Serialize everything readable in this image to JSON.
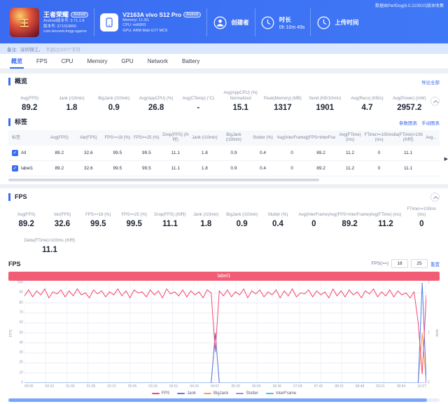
{
  "header": {
    "collect_info": "数据由PerfDog(6.0.210910)版本收集",
    "game": {
      "title": "王者荣耀",
      "badge": "Android",
      "icon_glyph": "王",
      "version_line1": "Android版本号: 3.71.1.8",
      "version_line2": "版本号: 371010800",
      "package": "com.tencent.tmgp.sgame"
    },
    "device": {
      "name": "V2163A vivo S12 Pro",
      "badge": "Android",
      "memory": "Memory: 11.3G",
      "cpu": "CPU: mt6893",
      "gpu": "GPU: ARM Mali-G77 MC9"
    },
    "creator_label": "创建者",
    "duration_label": "时长",
    "duration_value": "0h 10m 49s",
    "upload_label": "上传时间"
  },
  "note": {
    "label": "备注:",
    "text": "深圳锦江，",
    "placeholder": "不超过200个字符"
  },
  "tabs": [
    {
      "label": "概览",
      "active": true
    },
    {
      "label": "FPS",
      "active": false
    },
    {
      "label": "CPU",
      "active": false
    },
    {
      "label": "Memory",
      "active": false
    },
    {
      "label": "GPU",
      "active": false
    },
    {
      "label": "Network",
      "active": false
    },
    {
      "label": "Battery",
      "active": false
    }
  ],
  "overview": {
    "title": "概览",
    "export_label": "导出全部",
    "stats": [
      {
        "label": "Avg(FPS)",
        "value": "89.2"
      },
      {
        "label": "Jank (/10min)",
        "value": "1.8"
      },
      {
        "label": "BigJank (/10min)",
        "value": "0.9"
      },
      {
        "label": "Avg(AppCPU) (%)",
        "value": "26.8"
      },
      {
        "label": "Avg(CTemp) (°C)",
        "value": "-"
      },
      {
        "label": "Avg(AppCPU) (%) Normalized",
        "value": "15.1"
      },
      {
        "label": "Peak(Memory) (MB)",
        "value": "1317"
      },
      {
        "label": "Send (KB/10min)",
        "value": "1901"
      },
      {
        "label": "Avg(Recv) (KB/s)",
        "value": "4.7"
      },
      {
        "label": "Avg(Power) (mW)",
        "value": "2957.2"
      }
    ]
  },
  "labels_section": {
    "title": "标签",
    "links": [
      "参数图表",
      "手动图表"
    ],
    "columns": [
      "标签",
      "Avg(FPS)",
      "Var(FPS)",
      "FPS>=18 (%)",
      "FPS>=25 (%)",
      "Drop(FPS) (/h时)",
      "Jank (/10min)",
      "BigJank (/10min)",
      "Stutter (%)",
      "Avg(InterFrame)",
      "Avg(FPS+InterFrame)",
      "Avg(FTime) (ms)",
      "FTime>=100ms (ms)",
      "Delta(FTime)>100ms (/h时)",
      "Avg..."
    ],
    "rows": [
      {
        "name": "All",
        "checked": true,
        "values": [
          "89.2",
          "32.6",
          "99.5",
          "99.5",
          "11.1",
          "1.8",
          "0.9",
          "0.4",
          "0",
          "89.2",
          "11.2",
          "0",
          "11.1"
        ]
      },
      {
        "name": "label1",
        "checked": true,
        "values": [
          "89.2",
          "32.6",
          "99.5",
          "99.5",
          "11.1",
          "1.8",
          "0.9",
          "0.4",
          "0",
          "89.2",
          "11.2",
          "0",
          "11.1"
        ]
      }
    ]
  },
  "fps_section": {
    "title": "FPS",
    "stats_row1": [
      {
        "label": "Avg(FPS)",
        "value": "89.2"
      },
      {
        "label": "Var(FPS)",
        "value": "32.6"
      },
      {
        "label": "FPS>=18 (%)",
        "value": "99.5"
      },
      {
        "label": "FPS>=25 (%)",
        "value": "99.5"
      },
      {
        "label": "Drop(FPS) (/h时)",
        "value": "11.1"
      },
      {
        "label": "Jank (/10min)",
        "value": "1.8"
      },
      {
        "label": "BigJank (/10min)",
        "value": "0.9"
      },
      {
        "label": "Stutter (%)",
        "value": "0.4"
      },
      {
        "label": "Avg(InterFrame)",
        "value": "0"
      },
      {
        "label": "Avg(FPS+InterFrame)",
        "value": "89.2"
      },
      {
        "label": "Avg(FTime) (ms)",
        "value": "11.2"
      },
      {
        "label": "FTime>=100ms (ms)",
        "value": "0"
      }
    ],
    "stats_row2": [
      {
        "label": "Delta(FTime)>100ms (/h时)",
        "value": "11.1"
      }
    ],
    "chart_header": {
      "title": "FPS",
      "threshold_label": "FPS(>=)",
      "threshold1": "18",
      "threshold2": "25",
      "reset_label": "重置"
    },
    "banner_label": "label1"
  },
  "chart_data": {
    "type": "line",
    "title": "FPS",
    "ylabel_left": "FPS",
    "ylabel_right": "Jank",
    "ylim_left": [
      0,
      100
    ],
    "ylim_right": [
      0,
      2
    ],
    "grid": true,
    "legend_position": "bottom",
    "x_labels": [
      "00:00",
      "00:33",
      "01:05",
      "01:39",
      "02:12",
      "02:45",
      "03:18",
      "03:51",
      "04:24",
      "04:57",
      "05:30",
      "06:03",
      "06:36",
      "07:09",
      "07:42",
      "08:15",
      "08:48",
      "09:21",
      "09:54",
      "10:27"
    ],
    "series": [
      {
        "name": "FPS",
        "color": "#f5476e",
        "axis": "left",
        "values": [
          87,
          93,
          86,
          92,
          88,
          94,
          85,
          91,
          89,
          93,
          86,
          92,
          87,
          94,
          88,
          90,
          85,
          93,
          89,
          92,
          86,
          91,
          88,
          94,
          87,
          92,
          85,
          93,
          90,
          91,
          86,
          93,
          88,
          92,
          85,
          94,
          89,
          91,
          87,
          93,
          86,
          92,
          88,
          91,
          85,
          93,
          90,
          31,
          92,
          87,
          93,
          86,
          91,
          88,
          94,
          85,
          92,
          89,
          93,
          86,
          91,
          88,
          93,
          85,
          92,
          87,
          94,
          86,
          90,
          89,
          93,
          86,
          92,
          88,
          91,
          85,
          94,
          87,
          92,
          86,
          93,
          88,
          91,
          85,
          92,
          89,
          94,
          86,
          91,
          87,
          93,
          86,
          92,
          88,
          90,
          85,
          91,
          60,
          9,
          88
        ]
      },
      {
        "name": "Jank",
        "color": "#4c7df2",
        "axis": "right",
        "base": 0,
        "spikes": {
          "47": 1,
          "98": 2
        }
      },
      {
        "name": "BigJank",
        "color": "#ffa040",
        "axis": "right",
        "base": 0,
        "spikes": {
          "47": 1,
          "98": 1
        }
      },
      {
        "name": "Stutter",
        "color": "#9b8ce0",
        "axis": "right",
        "base": 0,
        "spikes": {}
      },
      {
        "name": "InterFrame",
        "color": "#3ec8d8",
        "axis": "right",
        "base": 0,
        "spikes": {}
      }
    ]
  }
}
